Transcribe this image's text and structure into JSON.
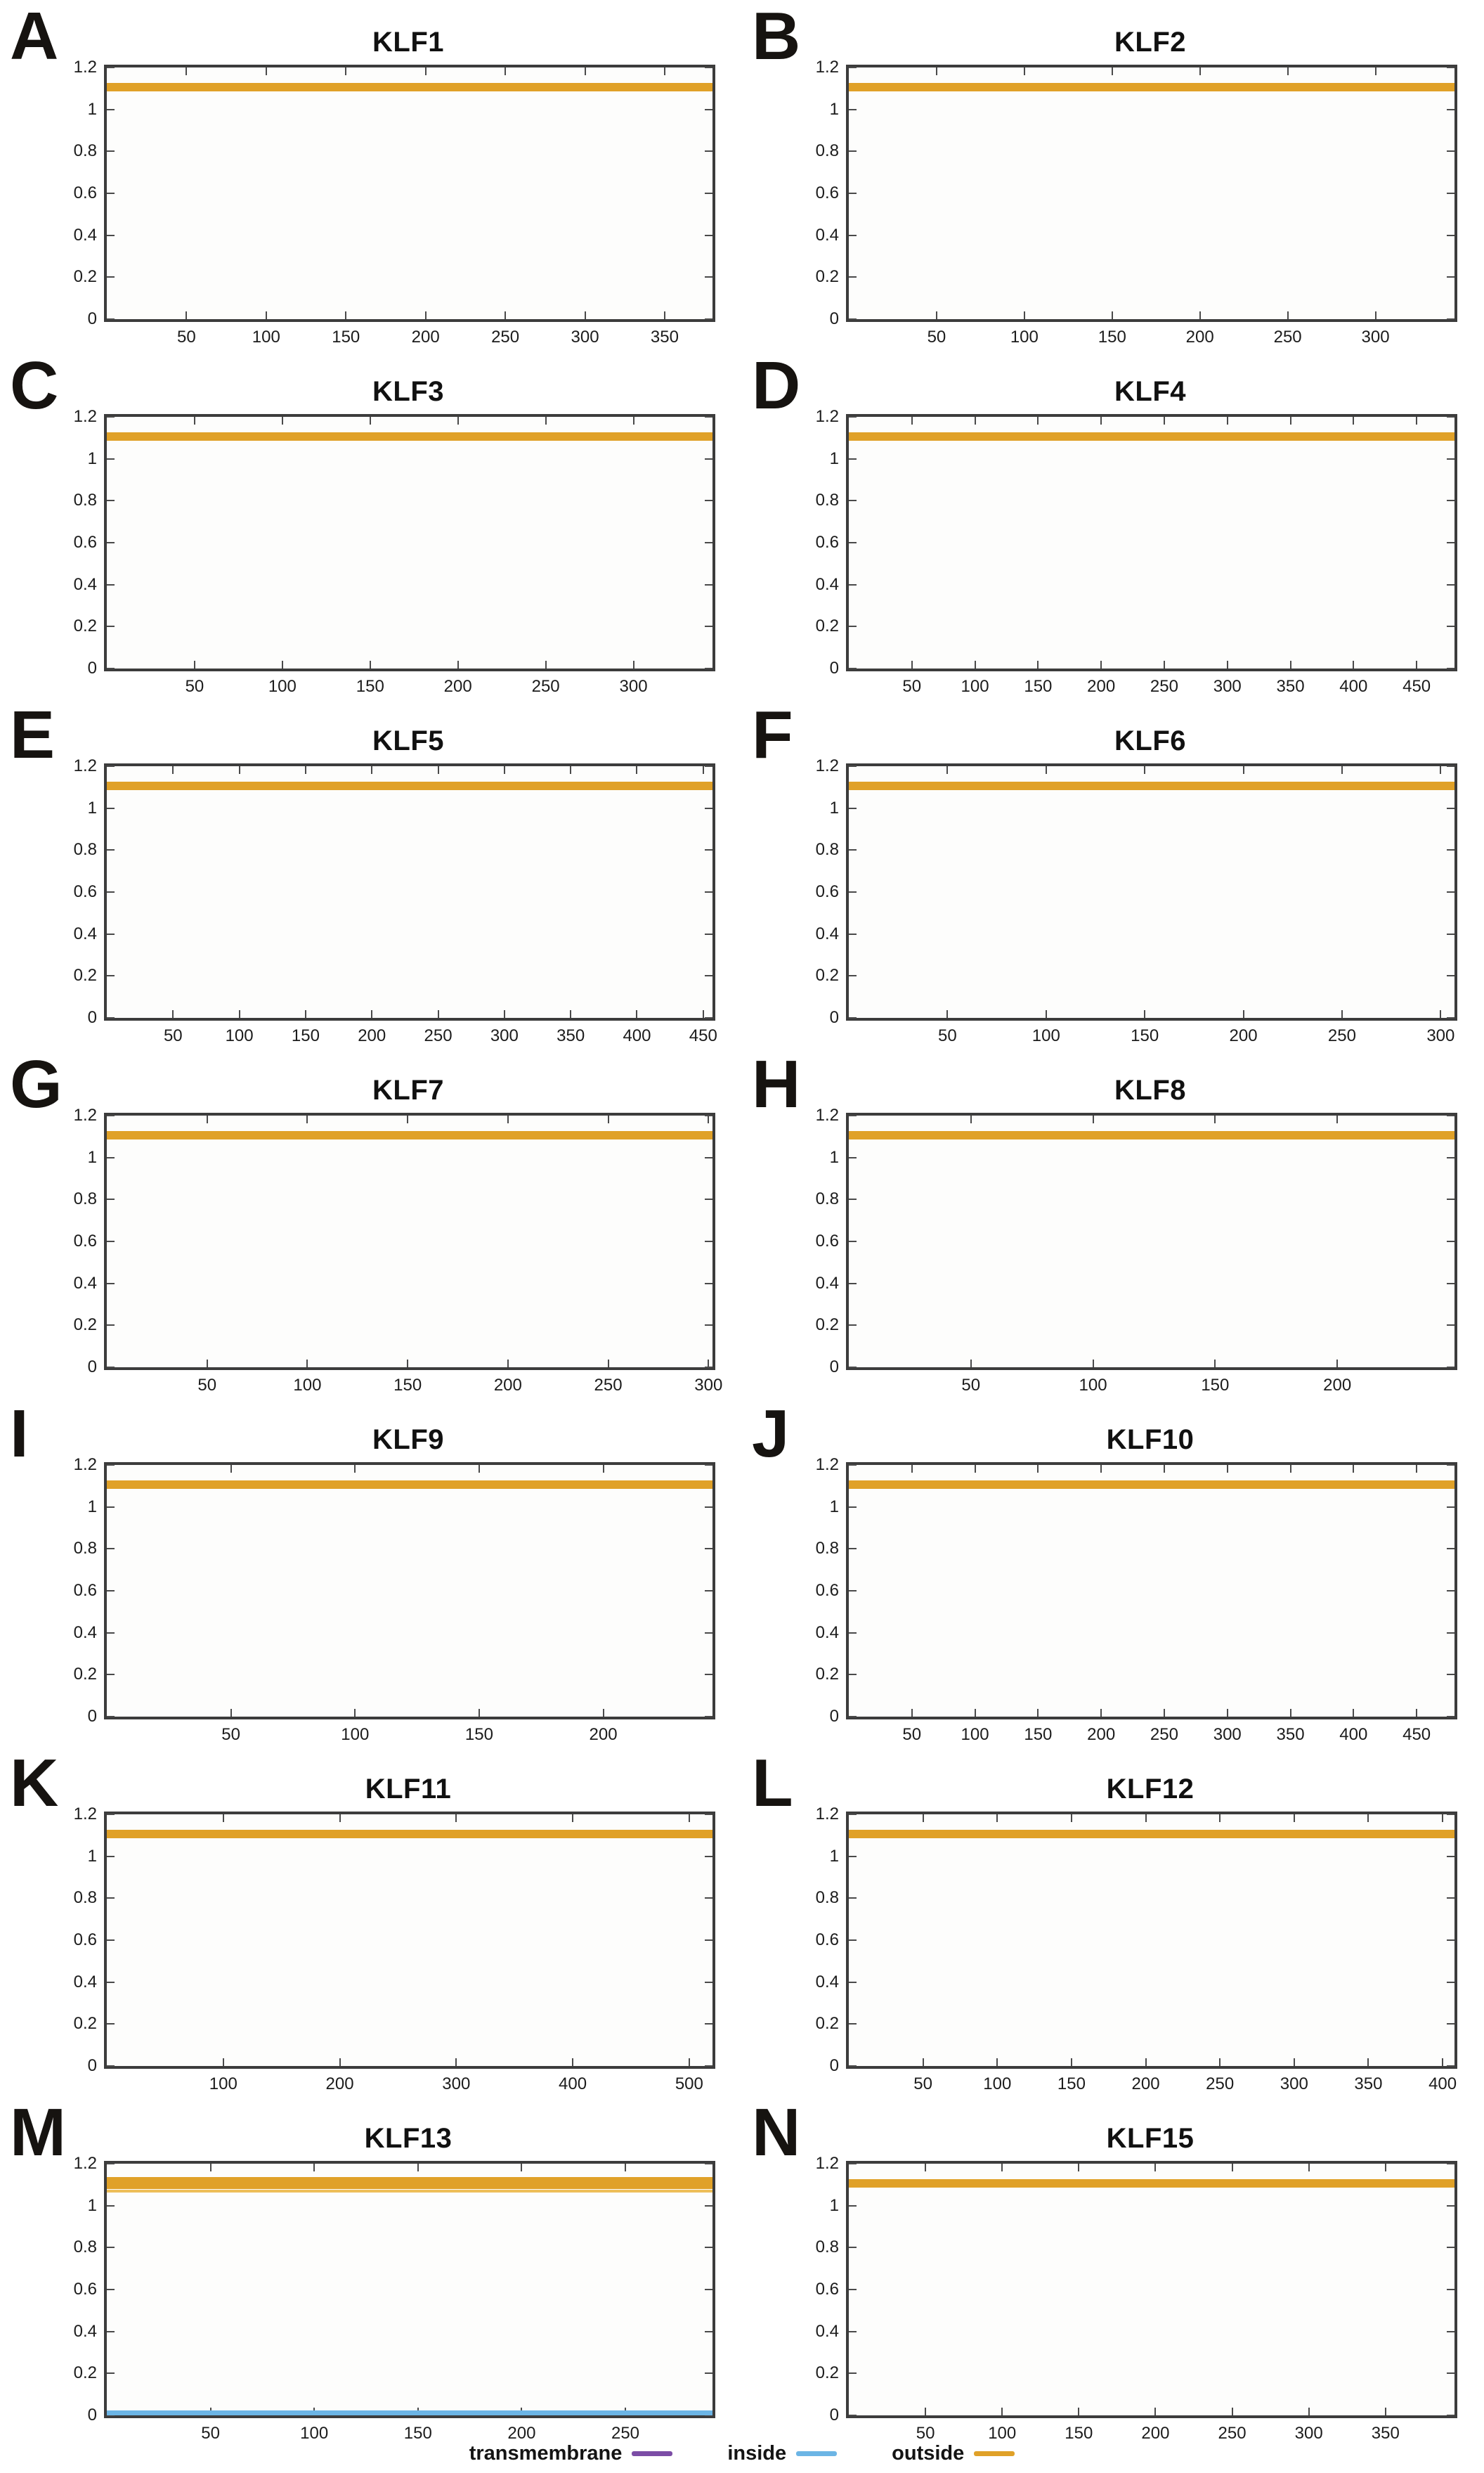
{
  "colors": {
    "outside": "#E0A128",
    "outside_light": "#EDBE59",
    "inside": "#6CB5E5",
    "transmembrane": "#7C4DA6",
    "axis": "#3C3C3C",
    "text": "#1A1A1A"
  },
  "legend": {
    "position": "bottom",
    "items": [
      {
        "label": "transmembrane",
        "series": "transmembrane",
        "color": "#7C4DA6"
      },
      {
        "label": "inside",
        "series": "inside",
        "color": "#6CB5E5"
      },
      {
        "label": "outside",
        "series": "outside",
        "color": "#E0A128"
      }
    ]
  },
  "chart_data": {
    "type": "line",
    "description": "Membrane topology probability plots; each panel shows a constant 'outside' probability line across the full protein length.",
    "ylim": [
      0,
      1.2
    ],
    "y_ticks": [
      {
        "v": 0,
        "label": "0"
      },
      {
        "v": 0.2,
        "label": "0.2"
      },
      {
        "v": 0.4,
        "label": "0.4"
      },
      {
        "v": 0.6,
        "label": "0.6"
      },
      {
        "v": 0.8,
        "label": "0.8"
      },
      {
        "v": 1,
        "label": "1"
      },
      {
        "v": 1.2,
        "label": "1.2"
      }
    ],
    "grid": false,
    "legend_entries": [
      "transmembrane",
      "inside",
      "outside"
    ],
    "panels": [
      {
        "letter": "A",
        "title": "KLF1",
        "xlim": [
          1,
          380
        ],
        "x_ticks": [
          50,
          100,
          150,
          200,
          250,
          300,
          350
        ],
        "series": [
          {
            "name": "outside",
            "value": 1.1,
            "band": [
              1.085,
              1.125
            ]
          }
        ]
      },
      {
        "letter": "B",
        "title": "KLF2",
        "xlim": [
          1,
          345
        ],
        "x_ticks": [
          50,
          100,
          150,
          200,
          250,
          300
        ],
        "series": [
          {
            "name": "outside",
            "value": 1.1,
            "band": [
              1.085,
              1.125
            ]
          }
        ]
      },
      {
        "letter": "C",
        "title": "KLF3",
        "xlim": [
          1,
          345
        ],
        "x_ticks": [
          50,
          100,
          150,
          200,
          250,
          300
        ],
        "series": [
          {
            "name": "outside",
            "value": 1.1,
            "band": [
              1.085,
              1.125
            ]
          }
        ]
      },
      {
        "letter": "D",
        "title": "KLF4",
        "xlim": [
          1,
          480
        ],
        "x_ticks": [
          50,
          100,
          150,
          200,
          250,
          300,
          350,
          400,
          450
        ],
        "series": [
          {
            "name": "outside",
            "value": 1.1,
            "band": [
              1.085,
              1.125
            ]
          }
        ]
      },
      {
        "letter": "E",
        "title": "KLF5",
        "xlim": [
          1,
          457
        ],
        "x_ticks": [
          50,
          100,
          150,
          200,
          250,
          300,
          350,
          400,
          450
        ],
        "series": [
          {
            "name": "outside",
            "value": 1.1,
            "band": [
              1.085,
              1.125
            ]
          }
        ]
      },
      {
        "letter": "F",
        "title": "KLF6",
        "xlim": [
          1,
          307
        ],
        "x_ticks": [
          50,
          100,
          150,
          200,
          250,
          300
        ],
        "series": [
          {
            "name": "outside",
            "value": 1.1,
            "band": [
              1.085,
              1.125
            ]
          }
        ]
      },
      {
        "letter": "G",
        "title": "KLF7",
        "xlim": [
          1,
          302
        ],
        "x_ticks": [
          50,
          100,
          150,
          200,
          250,
          300
        ],
        "series": [
          {
            "name": "outside",
            "value": 1.1,
            "band": [
              1.085,
              1.125
            ]
          }
        ]
      },
      {
        "letter": "H",
        "title": "KLF8",
        "xlim": [
          1,
          248
        ],
        "x_ticks": [
          50,
          100,
          150,
          200
        ],
        "series": [
          {
            "name": "outside",
            "value": 1.1,
            "band": [
              1.085,
              1.125
            ]
          }
        ]
      },
      {
        "letter": "I",
        "title": "KLF9",
        "xlim": [
          1,
          244
        ],
        "x_ticks": [
          50,
          100,
          150,
          200
        ],
        "series": [
          {
            "name": "outside",
            "value": 1.1,
            "band": [
              1.085,
              1.125
            ]
          }
        ]
      },
      {
        "letter": "J",
        "title": "KLF10",
        "xlim": [
          1,
          480
        ],
        "x_ticks": [
          50,
          100,
          150,
          200,
          250,
          300,
          350,
          400,
          450
        ],
        "series": [
          {
            "name": "outside",
            "value": 1.1,
            "band": [
              1.085,
              1.125
            ]
          }
        ]
      },
      {
        "letter": "K",
        "title": "KLF11",
        "xlim": [
          1,
          520
        ],
        "x_ticks": [
          100,
          200,
          300,
          400,
          500
        ],
        "series": [
          {
            "name": "outside",
            "value": 1.1,
            "band": [
              1.085,
              1.125
            ]
          }
        ]
      },
      {
        "letter": "L",
        "title": "KLF12",
        "xlim": [
          1,
          408
        ],
        "x_ticks": [
          50,
          100,
          150,
          200,
          250,
          300,
          350,
          400
        ],
        "series": [
          {
            "name": "outside",
            "value": 1.1,
            "band": [
              1.085,
              1.125
            ]
          }
        ]
      },
      {
        "letter": "M",
        "title": "KLF13",
        "xlim": [
          1,
          292
        ],
        "x_ticks": [
          50,
          100,
          150,
          200,
          250
        ],
        "series": [
          {
            "name": "outside",
            "value": 1.1,
            "band": [
              1.08,
              1.135
            ]
          },
          {
            "name": "outside-thin",
            "value": 1.07,
            "band": [
              1.064,
              1.076
            ]
          },
          {
            "name": "inside",
            "value": 0.01,
            "band": [
              0.0,
              0.022
            ]
          }
        ]
      },
      {
        "letter": "N",
        "title": "KLF15",
        "xlim": [
          1,
          395
        ],
        "x_ticks": [
          50,
          100,
          150,
          200,
          250,
          300,
          350
        ],
        "series": [
          {
            "name": "outside",
            "value": 1.1,
            "band": [
              1.085,
              1.125
            ]
          }
        ]
      }
    ]
  }
}
